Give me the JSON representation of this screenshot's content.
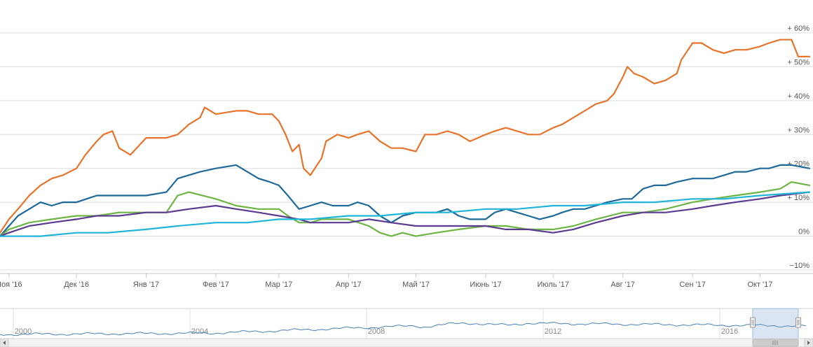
{
  "chart_data": {
    "type": "line",
    "title": "",
    "xlabel": "",
    "ylabel": "",
    "ylim": [
      -10,
      60
    ],
    "y_ticks": [
      "−10%",
      "0%",
      "+ 10%",
      "+ 20%",
      "+ 30%",
      "+ 40%",
      "+ 50%",
      "+ 60%"
    ],
    "y_tick_values": [
      -10,
      0,
      10,
      20,
      30,
      40,
      50,
      60
    ],
    "x_ticks": [
      "Ноя '16",
      "Дек '16",
      "Янв '17",
      "Фев '17",
      "Мар '17",
      "Апр '17",
      "Май '17",
      "Июнь '17",
      "Июль '17",
      "Авг '17",
      "Сен '17",
      "Окт '17"
    ],
    "x_tick_dates": [
      "2016-11-01",
      "2016-12-01",
      "2017-01-01",
      "2017-02-01",
      "2017-03-01",
      "2017-04-01",
      "2017-05-01",
      "2017-06-01",
      "2017-07-01",
      "2017-08-01",
      "2017-09-01",
      "2017-10-01"
    ],
    "x_range": [
      "2016-10-28",
      "2017-10-23"
    ],
    "grid": true,
    "legend": "none",
    "series": [
      {
        "color": "#e8732a",
        "x": [
          "2016-10-28",
          "2016-11-01",
          "2016-11-05",
          "2016-11-10",
          "2016-11-15",
          "2016-11-20",
          "2016-11-25",
          "2016-12-01",
          "2016-12-05",
          "2016-12-10",
          "2016-12-13",
          "2016-12-17",
          "2016-12-20",
          "2016-12-25",
          "2017-01-01",
          "2017-01-10",
          "2017-01-15",
          "2017-01-20",
          "2017-01-25",
          "2017-01-27",
          "2017-02-01",
          "2017-02-10",
          "2017-02-15",
          "2017-02-20",
          "2017-02-26",
          "2017-03-01",
          "2017-03-04",
          "2017-03-07",
          "2017-03-10",
          "2017-03-12",
          "2017-03-15",
          "2017-03-20",
          "2017-03-22",
          "2017-03-27",
          "2017-04-01",
          "2017-04-05",
          "2017-04-10",
          "2017-04-15",
          "2017-04-20",
          "2017-04-25",
          "2017-05-01",
          "2017-05-05",
          "2017-05-10",
          "2017-05-15",
          "2017-05-20",
          "2017-05-25",
          "2017-06-01",
          "2017-06-05",
          "2017-06-10",
          "2017-06-15",
          "2017-06-20",
          "2017-06-25",
          "2017-07-01",
          "2017-07-05",
          "2017-07-10",
          "2017-07-15",
          "2017-07-20",
          "2017-07-25",
          "2017-07-28",
          "2017-08-01",
          "2017-08-03",
          "2017-08-06",
          "2017-08-10",
          "2017-08-15",
          "2017-08-20",
          "2017-08-25",
          "2017-08-27",
          "2017-09-01",
          "2017-09-05",
          "2017-09-10",
          "2017-09-15",
          "2017-09-20",
          "2017-09-25",
          "2017-10-01",
          "2017-10-05",
          "2017-10-10",
          "2017-10-15",
          "2017-10-18",
          "2017-10-23"
        ],
        "y": [
          1,
          5,
          8,
          12,
          15,
          17,
          18,
          20,
          24,
          28,
          30,
          31,
          26,
          24,
          29,
          29,
          30,
          33,
          35,
          38,
          36,
          37,
          37,
          36,
          36,
          34,
          30,
          25,
          27,
          20,
          18,
          23,
          28,
          30,
          29,
          30,
          31,
          28,
          26,
          26,
          25,
          30,
          30,
          31,
          30,
          28,
          30,
          31,
          32,
          31,
          30,
          30,
          32,
          33,
          35,
          37,
          39,
          40,
          42,
          47,
          50,
          48,
          47,
          45,
          46,
          48,
          52,
          57,
          57,
          55,
          54,
          55,
          55,
          56,
          57,
          58,
          58,
          53,
          53
        ]
      },
      {
        "color": "#1d6a9a",
        "x": [
          "2016-10-28",
          "2016-11-01",
          "2016-11-05",
          "2016-11-10",
          "2016-11-15",
          "2016-11-20",
          "2016-11-25",
          "2016-12-01",
          "2016-12-10",
          "2016-12-20",
          "2017-01-01",
          "2017-01-10",
          "2017-01-15",
          "2017-01-25",
          "2017-02-01",
          "2017-02-10",
          "2017-02-15",
          "2017-02-20",
          "2017-02-25",
          "2017-03-01",
          "2017-03-05",
          "2017-03-10",
          "2017-03-15",
          "2017-03-20",
          "2017-03-25",
          "2017-04-01",
          "2017-04-05",
          "2017-04-10",
          "2017-04-15",
          "2017-04-20",
          "2017-04-25",
          "2017-05-01",
          "2017-05-10",
          "2017-05-15",
          "2017-05-20",
          "2017-05-25",
          "2017-06-01",
          "2017-06-05",
          "2017-06-10",
          "2017-06-15",
          "2017-06-20",
          "2017-06-25",
          "2017-07-01",
          "2017-07-05",
          "2017-07-10",
          "2017-07-15",
          "2017-07-20",
          "2017-07-25",
          "2017-08-01",
          "2017-08-05",
          "2017-08-10",
          "2017-08-15",
          "2017-08-20",
          "2017-08-25",
          "2017-09-01",
          "2017-09-05",
          "2017-09-10",
          "2017-09-15",
          "2017-09-20",
          "2017-09-25",
          "2017-10-01",
          "2017-10-05",
          "2017-10-10",
          "2017-10-15",
          "2017-10-23"
        ],
        "y": [
          0,
          3,
          6,
          8,
          10,
          9,
          10,
          10,
          12,
          12,
          12,
          13,
          17,
          19,
          20,
          21,
          19,
          17,
          16,
          15,
          12,
          8,
          9,
          10,
          9,
          9,
          10,
          9,
          6,
          4,
          6,
          7,
          7,
          8,
          6,
          5,
          5,
          7,
          8,
          7,
          6,
          5,
          6,
          7,
          8,
          8,
          9,
          10,
          11,
          11,
          14,
          15,
          15,
          16,
          17,
          17,
          17,
          18,
          19,
          19,
          20,
          20,
          21,
          21,
          20
        ]
      },
      {
        "color": "#6cb544",
        "x": [
          "2016-10-28",
          "2016-11-01",
          "2016-11-10",
          "2016-11-20",
          "2016-12-01",
          "2016-12-10",
          "2016-12-20",
          "2017-01-01",
          "2017-01-10",
          "2017-01-15",
          "2017-01-20",
          "2017-02-01",
          "2017-02-10",
          "2017-02-20",
          "2017-03-01",
          "2017-03-05",
          "2017-03-10",
          "2017-03-15",
          "2017-03-20",
          "2017-04-01",
          "2017-04-10",
          "2017-04-15",
          "2017-04-20",
          "2017-04-25",
          "2017-05-01",
          "2017-05-10",
          "2017-05-20",
          "2017-06-01",
          "2017-06-10",
          "2017-06-20",
          "2017-07-01",
          "2017-07-10",
          "2017-07-20",
          "2017-08-01",
          "2017-08-10",
          "2017-08-20",
          "2017-09-01",
          "2017-09-10",
          "2017-09-20",
          "2017-10-01",
          "2017-10-10",
          "2017-10-15",
          "2017-10-23"
        ],
        "y": [
          0,
          2,
          4,
          5,
          6,
          6,
          7,
          7,
          7,
          12,
          13,
          11,
          9,
          8,
          8,
          6,
          4,
          4,
          5,
          5,
          3,
          1,
          0,
          1,
          0,
          1,
          2,
          3,
          3,
          2,
          2,
          3,
          5,
          7,
          7,
          8,
          10,
          11,
          12,
          13,
          14,
          16,
          15
        ]
      },
      {
        "color": "#5b3a91",
        "x": [
          "2016-10-28",
          "2016-11-01",
          "2016-11-10",
          "2016-11-20",
          "2016-12-01",
          "2016-12-10",
          "2016-12-20",
          "2017-01-01",
          "2017-01-10",
          "2017-01-20",
          "2017-02-01",
          "2017-02-10",
          "2017-02-20",
          "2017-03-01",
          "2017-03-10",
          "2017-03-15",
          "2017-03-20",
          "2017-04-01",
          "2017-04-10",
          "2017-04-20",
          "2017-05-01",
          "2017-05-10",
          "2017-05-20",
          "2017-06-01",
          "2017-06-10",
          "2017-06-20",
          "2017-07-01",
          "2017-07-10",
          "2017-07-20",
          "2017-08-01",
          "2017-08-10",
          "2017-08-20",
          "2017-09-01",
          "2017-09-10",
          "2017-09-20",
          "2017-10-01",
          "2017-10-10",
          "2017-10-23"
        ],
        "y": [
          0,
          1,
          3,
          4,
          5,
          6,
          6,
          7,
          7,
          8,
          9,
          8,
          7,
          6,
          5,
          4,
          4,
          4,
          5,
          4,
          3,
          3,
          3,
          3,
          2,
          2,
          1,
          2,
          4,
          6,
          7,
          7,
          8,
          9,
          10,
          11,
          12,
          13
        ]
      },
      {
        "color": "#1fb4d8",
        "x": [
          "2016-10-28",
          "2016-11-15",
          "2016-12-01",
          "2016-12-15",
          "2017-01-01",
          "2017-01-15",
          "2017-02-01",
          "2017-02-15",
          "2017-03-01",
          "2017-03-15",
          "2017-04-01",
          "2017-04-15",
          "2017-05-01",
          "2017-05-15",
          "2017-06-01",
          "2017-06-15",
          "2017-07-01",
          "2017-07-15",
          "2017-08-01",
          "2017-08-15",
          "2017-09-01",
          "2017-09-15",
          "2017-10-01",
          "2017-10-23"
        ],
        "y": [
          0,
          0,
          1,
          1,
          2,
          3,
          4,
          4,
          5,
          5,
          6,
          6,
          7,
          7,
          8,
          8,
          9,
          9,
          10,
          10,
          11,
          11,
          12,
          13
        ]
      }
    ],
    "navigator": {
      "x_ticks": [
        "2000",
        "2004",
        "2008",
        "2012",
        "2016"
      ],
      "color": "#4a7fb5"
    }
  }
}
